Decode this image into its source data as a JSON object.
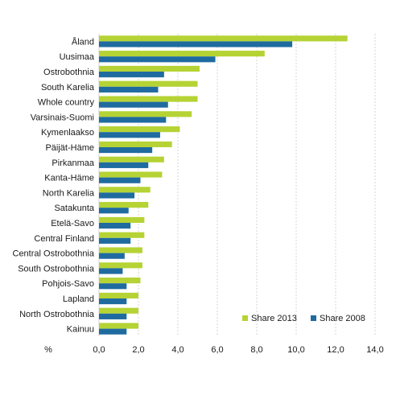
{
  "chart_data": {
    "type": "bar",
    "orientation": "horizontal",
    "xlabel": "%",
    "ylabel": "",
    "xlim": [
      0,
      14
    ],
    "x_ticks": [
      "0,0",
      "2,0",
      "4,0",
      "6,0",
      "8,0",
      "10,0",
      "12,0",
      "14,0"
    ],
    "grid": "vertical",
    "legend_position": "bottom-right",
    "categories": [
      "Åland",
      "Uusimaa",
      "Ostrobothnia",
      "South Karelia",
      "Whole country",
      "Varsinais-Suomi",
      "Kymenlaakso",
      "Päijät-Häme",
      "Pirkanmaa",
      "Kanta-Häme",
      "North Karelia",
      "Satakunta",
      "Etelä-Savo",
      "Central Finland",
      "Central Ostrobothnia",
      "South Ostrobothnia",
      "Pohjois-Savo",
      "Lapland",
      "North Ostrobothnia",
      "Kainuu"
    ],
    "series": [
      {
        "name": "Share 2013",
        "color": "#b5d334",
        "values": [
          12.6,
          8.4,
          5.1,
          5.0,
          5.0,
          4.7,
          4.1,
          3.7,
          3.3,
          3.2,
          2.6,
          2.5,
          2.3,
          2.3,
          2.2,
          2.2,
          2.1,
          2.0,
          2.0,
          2.0
        ]
      },
      {
        "name": "Share 2008",
        "color": "#1f6ba0",
        "values": [
          9.8,
          5.9,
          3.3,
          3.0,
          3.5,
          3.4,
          3.1,
          2.7,
          2.5,
          2.1,
          1.8,
          1.5,
          1.6,
          1.6,
          1.3,
          1.2,
          1.4,
          1.4,
          1.4,
          1.4
        ]
      }
    ]
  }
}
